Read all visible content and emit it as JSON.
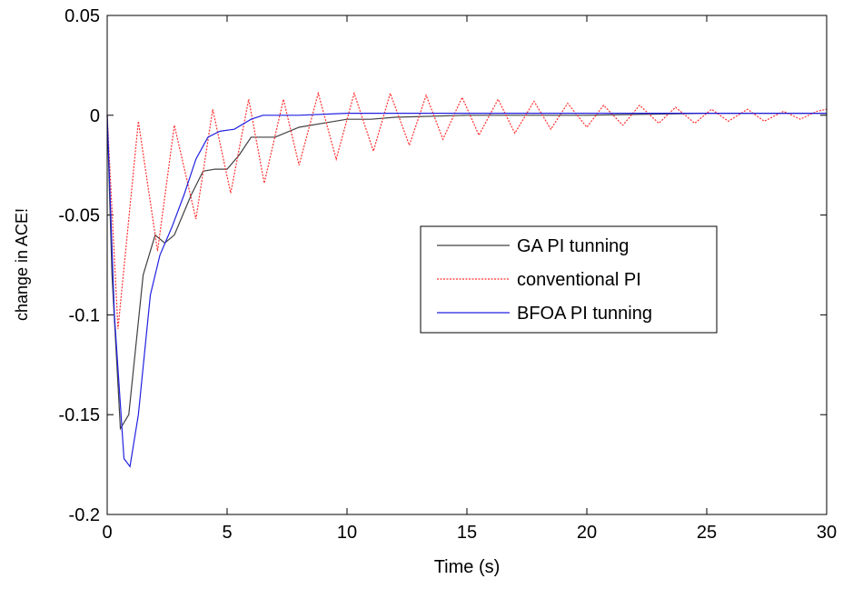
{
  "chart_data": {
    "type": "line",
    "xlabel": "Time (s)",
    "ylabel": "change in ACE!",
    "xlim": [
      0,
      30
    ],
    "xticks": [
      0,
      5,
      10,
      15,
      20,
      25,
      30
    ],
    "ylim": [
      -0.2,
      0.05
    ],
    "yticks": [
      -0.2,
      -0.15,
      -0.1,
      -0.05,
      0,
      0.05
    ],
    "legend_position": "center-right",
    "series": [
      {
        "name": "GA PI tunning",
        "color": "#404040",
        "x": [
          0,
          0.2,
          0.55,
          0.9,
          1.5,
          2,
          2.4,
          2.8,
          3.5,
          4,
          4.5,
          5,
          5.5,
          6,
          7,
          8,
          9,
          10,
          11,
          12,
          15,
          20,
          25,
          30
        ],
        "values": [
          0,
          -0.08,
          -0.157,
          -0.15,
          -0.08,
          -0.06,
          -0.064,
          -0.06,
          -0.04,
          -0.028,
          -0.027,
          -0.027,
          -0.02,
          -0.011,
          -0.011,
          -0.006,
          -0.004,
          -0.002,
          -0.002,
          -0.001,
          0,
          0,
          0.001,
          0.001
        ]
      },
      {
        "name": "conventional PI",
        "color": "#ff3030",
        "x": [
          0,
          0.45,
          1.3,
          2.1,
          2.8,
          3.7,
          4.4,
          5.15,
          5.9,
          6.55,
          7.35,
          8.0,
          8.8,
          9.55,
          10.3,
          11.1,
          11.8,
          12.6,
          13.3,
          14.0,
          14.8,
          15.5,
          16.3,
          17.0,
          17.8,
          18.5,
          19.2,
          20.0,
          20.7,
          21.5,
          22.2,
          23.0,
          23.7,
          24.5,
          25.2,
          25.9,
          26.7,
          27.4,
          28.2,
          28.9,
          29.6,
          30
        ],
        "values": [
          0,
          -0.107,
          -0.003,
          -0.068,
          -0.005,
          -0.052,
          0.003,
          -0.039,
          0.008,
          -0.034,
          0.008,
          -0.025,
          0.011,
          -0.022,
          0.011,
          -0.018,
          0.011,
          -0.015,
          0.01,
          -0.012,
          0.009,
          -0.01,
          0.008,
          -0.009,
          0.007,
          -0.007,
          0.006,
          -0.006,
          0.005,
          -0.005,
          0.005,
          -0.004,
          0.004,
          -0.004,
          0.003,
          -0.003,
          0.003,
          -0.003,
          0.002,
          -0.002,
          0.002,
          0.003
        ]
      },
      {
        "name": "BFOA PI tunning",
        "color": "#2020e0",
        "x": [
          0,
          0.3,
          0.7,
          0.95,
          1.3,
          1.8,
          2.2,
          2.7,
          3.2,
          3.7,
          4.2,
          4.7,
          5.3,
          6,
          6.5,
          8,
          10,
          30
        ],
        "values": [
          0,
          -0.1,
          -0.172,
          -0.176,
          -0.15,
          -0.09,
          -0.07,
          -0.056,
          -0.04,
          -0.022,
          -0.011,
          -0.008,
          -0.007,
          -0.002,
          0,
          0,
          0.001,
          0.001
        ]
      }
    ]
  }
}
